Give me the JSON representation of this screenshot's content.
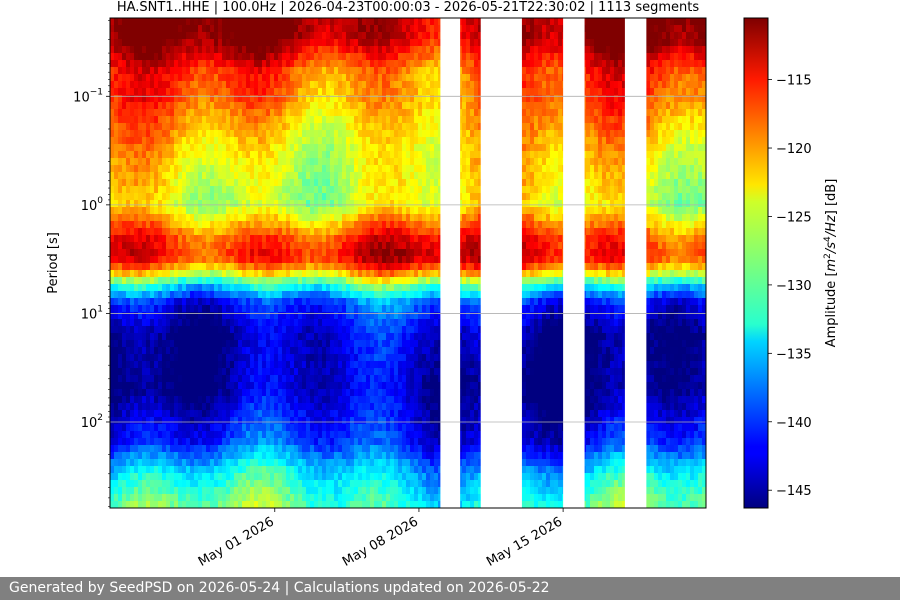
{
  "chart_data": {
    "type": "heatmap",
    "title": "HA.SNT1..HHE | 100.0Hz | 2026-04-23T00:00:03 - 2026-05-21T22:30:02 | 1113 segments",
    "ylabel": "Period [s]",
    "yscale": "log",
    "y_inverted": true,
    "ylim": [
      0.019,
      620
    ],
    "yticks": [
      {
        "value": 0.1,
        "label_base": "10",
        "label_exp": "−1"
      },
      {
        "value": 1,
        "label_base": "10",
        "label_exp": "0"
      },
      {
        "value": 10,
        "label_base": "10",
        "label_exp": "1"
      },
      {
        "value": 100,
        "label_base": "10",
        "label_exp": "2"
      }
    ],
    "xlim": [
      "2026-04-23T00:00:03",
      "2026-05-21T22:30:02"
    ],
    "xticks": [
      {
        "value": "2026-05-01",
        "label": "May 01 2026"
      },
      {
        "value": "2026-05-08",
        "label": "May 08 2026"
      },
      {
        "value": "2026-05-15",
        "label": "May 15 2026"
      }
    ],
    "data_gaps": [
      [
        "2026-05-09T01:00:00",
        "2026-05-10T00:00:00"
      ],
      [
        "2026-05-11T00:00:00",
        "2026-05-13T00:00:00"
      ],
      [
        "2026-05-15T00:00:00",
        "2026-05-16T01:00:00"
      ],
      [
        "2026-05-18T00:00:00",
        "2026-05-19T01:00:00"
      ]
    ],
    "grid": "y-major",
    "colormap": "jet",
    "colorbar": {
      "label": "Amplitude [m²/s⁴/Hz] [dB]",
      "label_prefix": "Amplitude [",
      "label_m": "m",
      "label_m_exp": "2",
      "label_s": "/s",
      "label_s_exp": "4",
      "label_hz": "/Hz",
      "label_suffix": "] [dB]",
      "range": [
        -146.3,
        -110.5
      ],
      "ticks": [
        {
          "value": -115,
          "label": "−115"
        },
        {
          "value": -120,
          "label": "−120"
        },
        {
          "value": -125,
          "label": "−125"
        },
        {
          "value": -130,
          "label": "−130"
        },
        {
          "value": -135,
          "label": "−135"
        },
        {
          "value": -140,
          "label": "−140"
        },
        {
          "value": -145,
          "label": "−145"
        }
      ]
    },
    "amplitude_profile_db": [
      {
        "period": 0.019,
        "db": -111
      },
      {
        "period": 0.03,
        "db": -112
      },
      {
        "period": 0.06,
        "db": -118
      },
      {
        "period": 0.1,
        "db": -119
      },
      {
        "period": 0.3,
        "db": -123
      },
      {
        "period": 1.0,
        "db": -125
      },
      {
        "period": 2.0,
        "db": -116
      },
      {
        "period": 3.0,
        "db": -114
      },
      {
        "period": 4.0,
        "db": -120
      },
      {
        "period": 5.5,
        "db": -131
      },
      {
        "period": 8.0,
        "db": -140
      },
      {
        "period": 15,
        "db": -144
      },
      {
        "period": 50,
        "db": -145
      },
      {
        "period": 150,
        "db": -141
      },
      {
        "period": 300,
        "db": -134
      },
      {
        "period": 620,
        "db": -130
      }
    ]
  },
  "footer": {
    "text": "Generated by SeedPSD on 2026-05-24 | Calculations updated on 2026-05-22"
  }
}
